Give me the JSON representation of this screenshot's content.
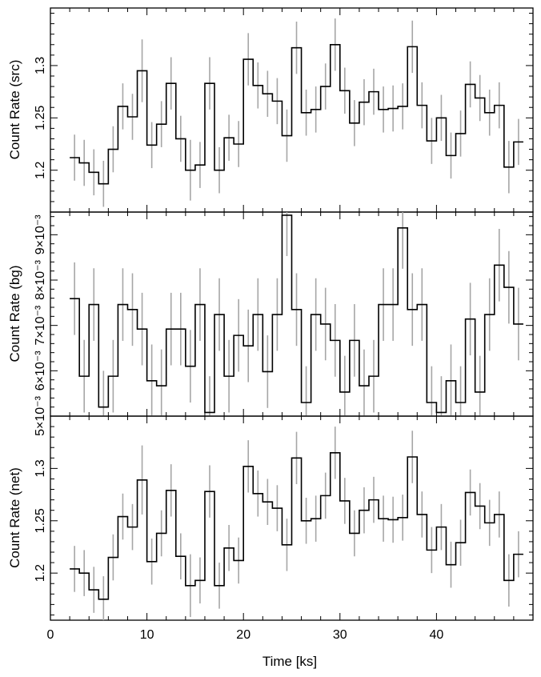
{
  "chart_data": [
    {
      "type": "line",
      "step": true,
      "ylabel": "Count Rate (src)",
      "ylim": [
        1.16,
        1.355
      ],
      "yticks": [
        1.2,
        1.25,
        1.3
      ],
      "yticklabels": [
        "1.2",
        "1.25",
        "1.3"
      ],
      "x": [
        2.5,
        3.5,
        4.5,
        5.5,
        6.5,
        7.5,
        8.5,
        9.5,
        10.5,
        11.5,
        12.5,
        13.5,
        14.5,
        15.5,
        16.5,
        17.5,
        18.5,
        19.5,
        20.5,
        21.5,
        22.5,
        23.5,
        24.5,
        25.5,
        26.5,
        27.5,
        28.5,
        29.5,
        30.5,
        31.5,
        32.5,
        33.5,
        34.5,
        35.5,
        36.5,
        37.5,
        38.5,
        39.5,
        40.5,
        41.5,
        42.5,
        43.5,
        44.5,
        45.5,
        46.5,
        47.5,
        48.5
      ],
      "values": [
        1.212,
        1.207,
        1.198,
        1.187,
        1.22,
        1.261,
        1.251,
        1.295,
        1.224,
        1.244,
        1.283,
        1.23,
        1.2,
        1.205,
        1.283,
        1.2,
        1.231,
        1.225,
        1.306,
        1.281,
        1.273,
        1.266,
        1.233,
        1.317,
        1.255,
        1.258,
        1.28,
        1.32,
        1.276,
        1.245,
        1.265,
        1.275,
        1.258,
        1.259,
        1.261,
        1.318,
        1.262,
        1.228,
        1.25,
        1.214,
        1.235,
        1.282,
        1.269,
        1.255,
        1.262,
        1.203,
        1.227
      ],
      "errors": [
        0.022,
        0.022,
        0.022,
        0.022,
        0.022,
        0.022,
        0.022,
        0.03,
        0.022,
        0.022,
        0.025,
        0.022,
        0.029,
        0.022,
        0.025,
        0.022,
        0.022,
        0.022,
        0.025,
        0.022,
        0.022,
        0.022,
        0.025,
        0.025,
        0.022,
        0.022,
        0.022,
        0.025,
        0.022,
        0.022,
        0.022,
        0.022,
        0.022,
        0.022,
        0.022,
        0.025,
        0.022,
        0.022,
        0.022,
        0.022,
        0.022,
        0.022,
        0.022,
        0.022,
        0.022,
        0.025,
        0.022
      ]
    },
    {
      "type": "line",
      "step": true,
      "ylabel": "Count Rate (bg)",
      "ylim": [
        0.005,
        0.0095
      ],
      "yticks": [
        0.005,
        0.006,
        0.007,
        0.008,
        0.009
      ],
      "yticklabels": [
        "5×10⁻³",
        "6×10⁻³",
        "7×10⁻³",
        "8×10⁻³",
        "9×10⁻³"
      ],
      "x": [
        2.5,
        3.5,
        4.5,
        5.5,
        6.5,
        7.5,
        8.5,
        9.5,
        10.5,
        11.5,
        12.5,
        13.5,
        14.5,
        15.5,
        16.5,
        17.5,
        18.5,
        19.5,
        20.5,
        21.5,
        22.5,
        23.5,
        24.5,
        25.5,
        26.5,
        27.5,
        28.5,
        29.5,
        30.5,
        31.5,
        32.5,
        33.5,
        34.5,
        35.5,
        36.5,
        37.5,
        38.5,
        39.5,
        40.5,
        41.5,
        42.5,
        43.5,
        44.5,
        45.5,
        46.5,
        47.5,
        48.5
      ],
      "values": [
        0.00759,
        0.00588,
        0.00746,
        0.0052,
        0.00588,
        0.00746,
        0.00735,
        0.00692,
        0.00578,
        0.00567,
        0.00692,
        0.00692,
        0.0061,
        0.00746,
        0.00508,
        0.00724,
        0.00588,
        0.00678,
        0.00655,
        0.00724,
        0.00598,
        0.00724,
        0.00943,
        0.00735,
        0.0053,
        0.00724,
        0.00703,
        0.00667,
        0.00553,
        0.00667,
        0.00567,
        0.00588,
        0.00746,
        0.00746,
        0.00915,
        0.00735,
        0.00746,
        0.0053,
        0.00508,
        0.00578,
        0.0053,
        0.00714,
        0.00553,
        0.00724,
        0.00833,
        0.00784,
        0.00703
      ],
      "errors": [
        0.0008,
        0.0008,
        0.0008,
        0.0008,
        0.0008,
        0.0008,
        0.0008,
        0.0008,
        0.0008,
        0.0008,
        0.0008,
        0.0008,
        0.0008,
        0.0008,
        0.0008,
        0.0008,
        0.0008,
        0.0008,
        0.0008,
        0.0008,
        0.0008,
        0.0008,
        0.0009,
        0.0008,
        0.0008,
        0.0008,
        0.0008,
        0.0008,
        0.0008,
        0.0008,
        0.0008,
        0.0008,
        0.0008,
        0.0008,
        0.0009,
        0.0008,
        0.0008,
        0.0008,
        0.0008,
        0.0008,
        0.0008,
        0.0008,
        0.0008,
        0.0008,
        0.0008,
        0.0008,
        0.0008
      ]
    },
    {
      "type": "line",
      "step": true,
      "ylabel": "Count Rate (net)",
      "ylim": [
        1.155,
        1.35
      ],
      "yticks": [
        1.2,
        1.25,
        1.3
      ],
      "yticklabels": [
        "1.2",
        "1.25",
        "1.3"
      ],
      "x": [
        2.5,
        3.5,
        4.5,
        5.5,
        6.5,
        7.5,
        8.5,
        9.5,
        10.5,
        11.5,
        12.5,
        13.5,
        14.5,
        15.5,
        16.5,
        17.5,
        18.5,
        19.5,
        20.5,
        21.5,
        22.5,
        23.5,
        24.5,
        25.5,
        26.5,
        27.5,
        28.5,
        29.5,
        30.5,
        31.5,
        32.5,
        33.5,
        34.5,
        35.5,
        36.5,
        37.5,
        38.5,
        39.5,
        40.5,
        41.5,
        42.5,
        43.5,
        44.5,
        45.5,
        46.5,
        47.5,
        48.5
      ],
      "values": [
        1.204,
        1.2,
        1.184,
        1.175,
        1.215,
        1.254,
        1.244,
        1.289,
        1.211,
        1.238,
        1.279,
        1.216,
        1.188,
        1.193,
        1.278,
        1.188,
        1.224,
        1.212,
        1.302,
        1.276,
        1.268,
        1.262,
        1.227,
        1.31,
        1.25,
        1.252,
        1.274,
        1.315,
        1.269,
        1.238,
        1.26,
        1.27,
        1.252,
        1.251,
        1.253,
        1.311,
        1.256,
        1.222,
        1.244,
        1.208,
        1.229,
        1.277,
        1.264,
        1.248,
        1.256,
        1.193,
        1.218
      ],
      "errors": [
        0.022,
        0.022,
        0.022,
        0.022,
        0.022,
        0.022,
        0.022,
        0.033,
        0.022,
        0.022,
        0.025,
        0.022,
        0.03,
        0.022,
        0.025,
        0.022,
        0.022,
        0.022,
        0.025,
        0.022,
        0.022,
        0.022,
        0.025,
        0.025,
        0.022,
        0.022,
        0.022,
        0.025,
        0.022,
        0.022,
        0.022,
        0.022,
        0.022,
        0.022,
        0.022,
        0.025,
        0.022,
        0.022,
        0.022,
        0.022,
        0.022,
        0.022,
        0.022,
        0.022,
        0.022,
        0.025,
        0.022
      ]
    }
  ],
  "x_axis": {
    "label": "Time [ks]",
    "xlim": [
      0,
      50
    ],
    "ticks": [
      0,
      10,
      20,
      30,
      40
    ],
    "ticklabels": [
      "0",
      "10",
      "20",
      "30",
      "40"
    ],
    "bin_width": 1.0
  },
  "colors": {
    "line": "#000000",
    "errorbar": "#a6a6a6",
    "background": "#ffffff"
  }
}
